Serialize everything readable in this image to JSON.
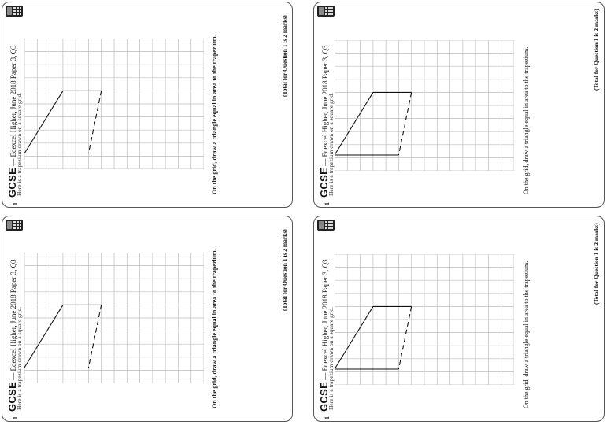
{
  "cards": [
    {
      "subject": "GCSE",
      "dash": "—",
      "question_id": "Edexcel Higher, June 2018 Paper 3, Q3",
      "number": "1",
      "intro": "Here is a trapezium drawn on a square grid.",
      "instruction": "On the grid, draw a triangle equal in area to the trapezium.",
      "total": "(Total for Question 1 is 2 marks)"
    },
    {
      "subject": "GCSE",
      "dash": "—",
      "question_id": "Edexcel Higher, June 2018 Paper 3, Q3",
      "number": "1",
      "intro": "Here is a trapezium drawn on a square grid.",
      "instruction": "On the grid, draw a triangle equal in area to the trapezium.",
      "total": "(Total for Question 1 is 2 marks)"
    },
    {
      "subject": "GCSE",
      "dash": "—",
      "question_id": "Edexcel Higher, June 2018 Paper 3, Q3",
      "number": "1",
      "intro": "Here is a trapezium drawn on a square grid.",
      "instruction": "On the grid, draw a triangle equal in area to the trapezium.",
      "total": "(Total for Question 1 is 2 marks)"
    },
    {
      "subject": "GCSE",
      "dash": "—",
      "question_id": "Edexcel Higher, June 2018 Paper 3, Q3",
      "number": "1",
      "intro": "Here is a trapezium drawn on a square grid.",
      "instruction": "On the grid, draw a triangle equal in area to the trapezium.",
      "total": "(Total for Question 1 is 2 marks)"
    }
  ],
  "icons": {
    "calculator": "calculator-icon"
  }
}
